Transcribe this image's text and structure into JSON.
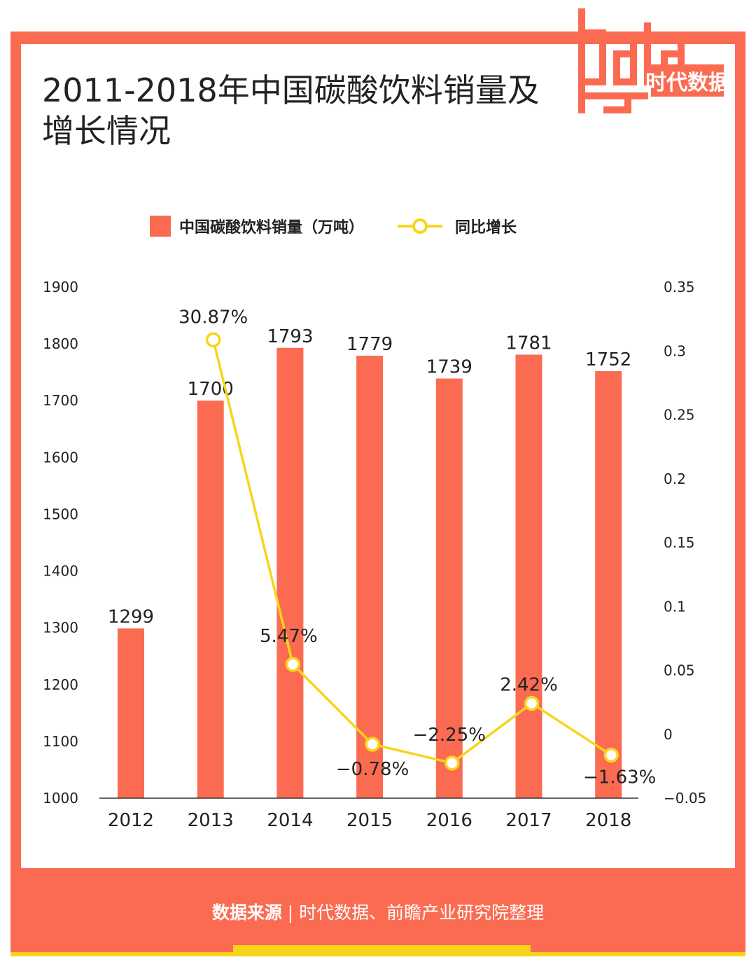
{
  "title": "2011-2018年中国碳酸饮料销量及增长情况",
  "logo": {
    "word": "data",
    "word2": "good",
    "cn": "时代数据"
  },
  "source": {
    "label": "数据来源",
    "separator": "|",
    "text": "时代数据、前瞻产业研究院整理"
  },
  "colors": {
    "accent": "#fb6b52",
    "line": "#f7d51c"
  },
  "chart_data": {
    "type": "bar+line",
    "categories": [
      "2012",
      "2013",
      "2014",
      "2015",
      "2016",
      "2017",
      "2018"
    ],
    "series": [
      {
        "name": "中国碳酸饮料销量（万吨）",
        "type": "bar",
        "axis": "left",
        "values": [
          1299,
          1700,
          1793,
          1779,
          1739,
          1781,
          1752
        ],
        "labels": [
          "1299",
          "1700",
          "1793",
          "1779",
          "1739",
          "1781",
          "1752"
        ]
      },
      {
        "name": "同比增长",
        "type": "line",
        "axis": "right",
        "values": [
          null,
          0.3087,
          0.0547,
          -0.0078,
          -0.0225,
          0.0242,
          -0.0163
        ],
        "labels": [
          "",
          "30.87%",
          "5.47%",
          "−0.78%",
          "−2.25%",
          "2.42%",
          "−1.63%"
        ]
      }
    ],
    "left_axis": {
      "ylim": [
        1000,
        1900
      ],
      "ticks": [
        "1000",
        "1100",
        "1200",
        "1300",
        "1400",
        "1500",
        "1600",
        "1700",
        "1800",
        "1900"
      ]
    },
    "right_axis": {
      "ylim": [
        -0.05,
        0.35
      ],
      "ticks": [
        "−0.05",
        "0",
        "0.05",
        "0.1",
        "0.15",
        "0.2",
        "0.25",
        "0.3",
        "0.35"
      ]
    },
    "grid": false,
    "legend_position": "top"
  }
}
